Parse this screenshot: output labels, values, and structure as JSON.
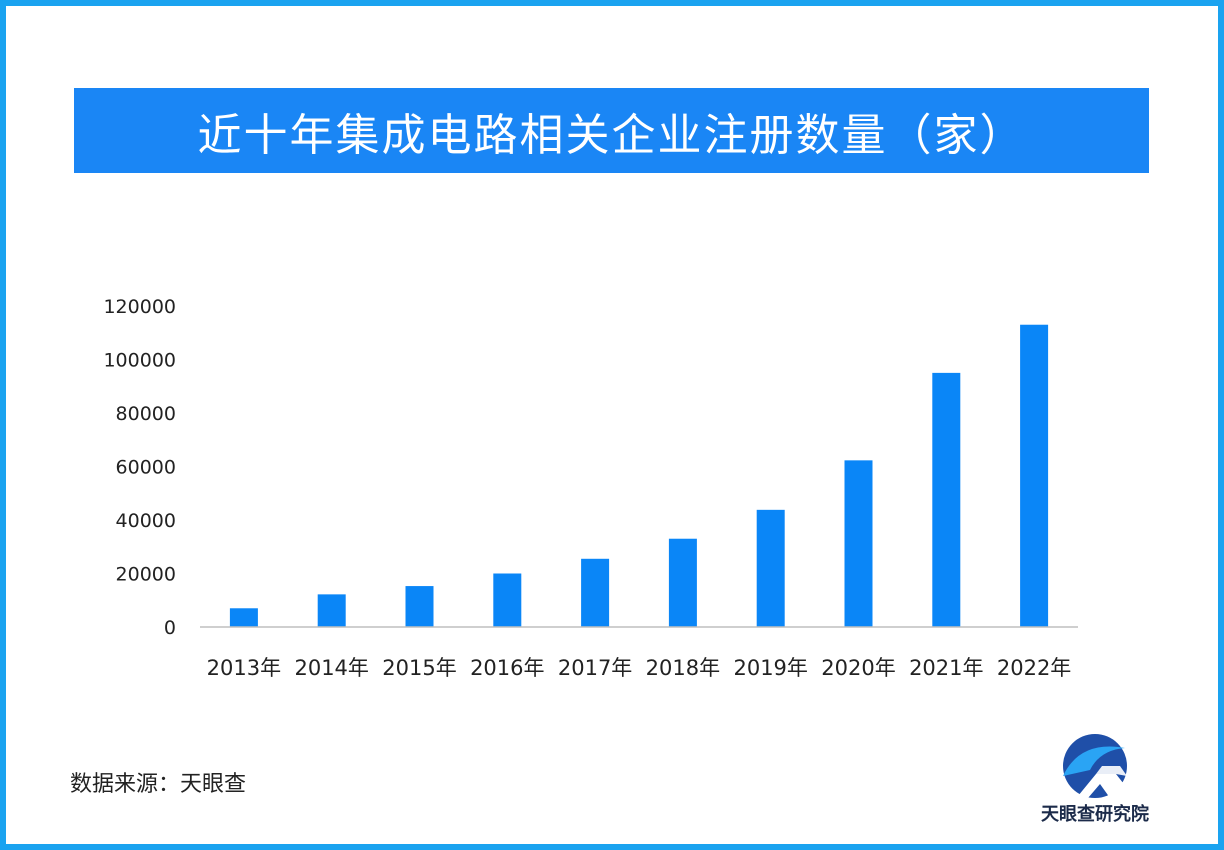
{
  "title": "近十年集成电路相关企业注册数量（家）",
  "source": "数据来源：天眼查",
  "logo": {
    "text": "天眼查研究院",
    "icon": "tianyancha-logo-icon"
  },
  "colors": {
    "bar": "#0a86f7",
    "banner": "#1a86f5",
    "frame": "#1aa3f0",
    "axis": "#bfbfbf"
  },
  "chart_data": {
    "type": "bar",
    "title": "近十年集成电路相关企业注册数量（家）",
    "categories": [
      "2013年",
      "2014年",
      "2015年",
      "2016年",
      "2017年",
      "2018年",
      "2019年",
      "2020年",
      "2021年",
      "2022年"
    ],
    "values": [
      7000,
      12200,
      15300,
      20000,
      25500,
      33000,
      43800,
      62300,
      95000,
      113000
    ],
    "ylim": [
      0,
      120000
    ],
    "yticks": [
      "0",
      "20000",
      "40000",
      "60000",
      "80000",
      "100000",
      "120000"
    ],
    "ytick_values": [
      0,
      20000,
      40000,
      60000,
      80000,
      100000,
      120000
    ],
    "xlabel": "",
    "ylabel": "",
    "grid": false
  }
}
